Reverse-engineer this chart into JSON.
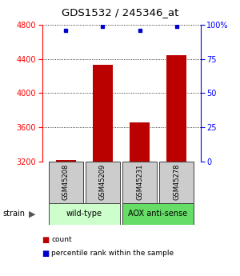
{
  "title": "GDS1532 / 245346_at",
  "samples": [
    "GSM45208",
    "GSM45209",
    "GSM45231",
    "GSM45278"
  ],
  "counts": [
    3215,
    4330,
    3660,
    4440
  ],
  "percentiles": [
    96,
    99,
    96,
    99
  ],
  "ylim_left": [
    3200,
    4800
  ],
  "ylim_right": [
    0,
    100
  ],
  "yticks_left": [
    3200,
    3600,
    4000,
    4400,
    4800
  ],
  "yticks_right": [
    0,
    25,
    50,
    75,
    100
  ],
  "ytick_labels_right": [
    "0",
    "25",
    "50",
    "75",
    "100%"
  ],
  "bar_color": "#bb0000",
  "dot_color": "#0000cc",
  "grid_color": "#000000",
  "groups": [
    {
      "label": "wild-type",
      "color": "#ccffcc",
      "indices": [
        0,
        1
      ]
    },
    {
      "label": "AOX anti-sense",
      "color": "#66dd66",
      "indices": [
        2,
        3
      ]
    }
  ],
  "strain_label": "strain",
  "legend_count_label": "count",
  "legend_pct_label": "percentile rank within the sample",
  "bg_color": "#ffffff",
  "label_box_color": "#cccccc",
  "bar_width": 0.55,
  "x_positions": [
    1,
    2,
    3,
    4
  ]
}
